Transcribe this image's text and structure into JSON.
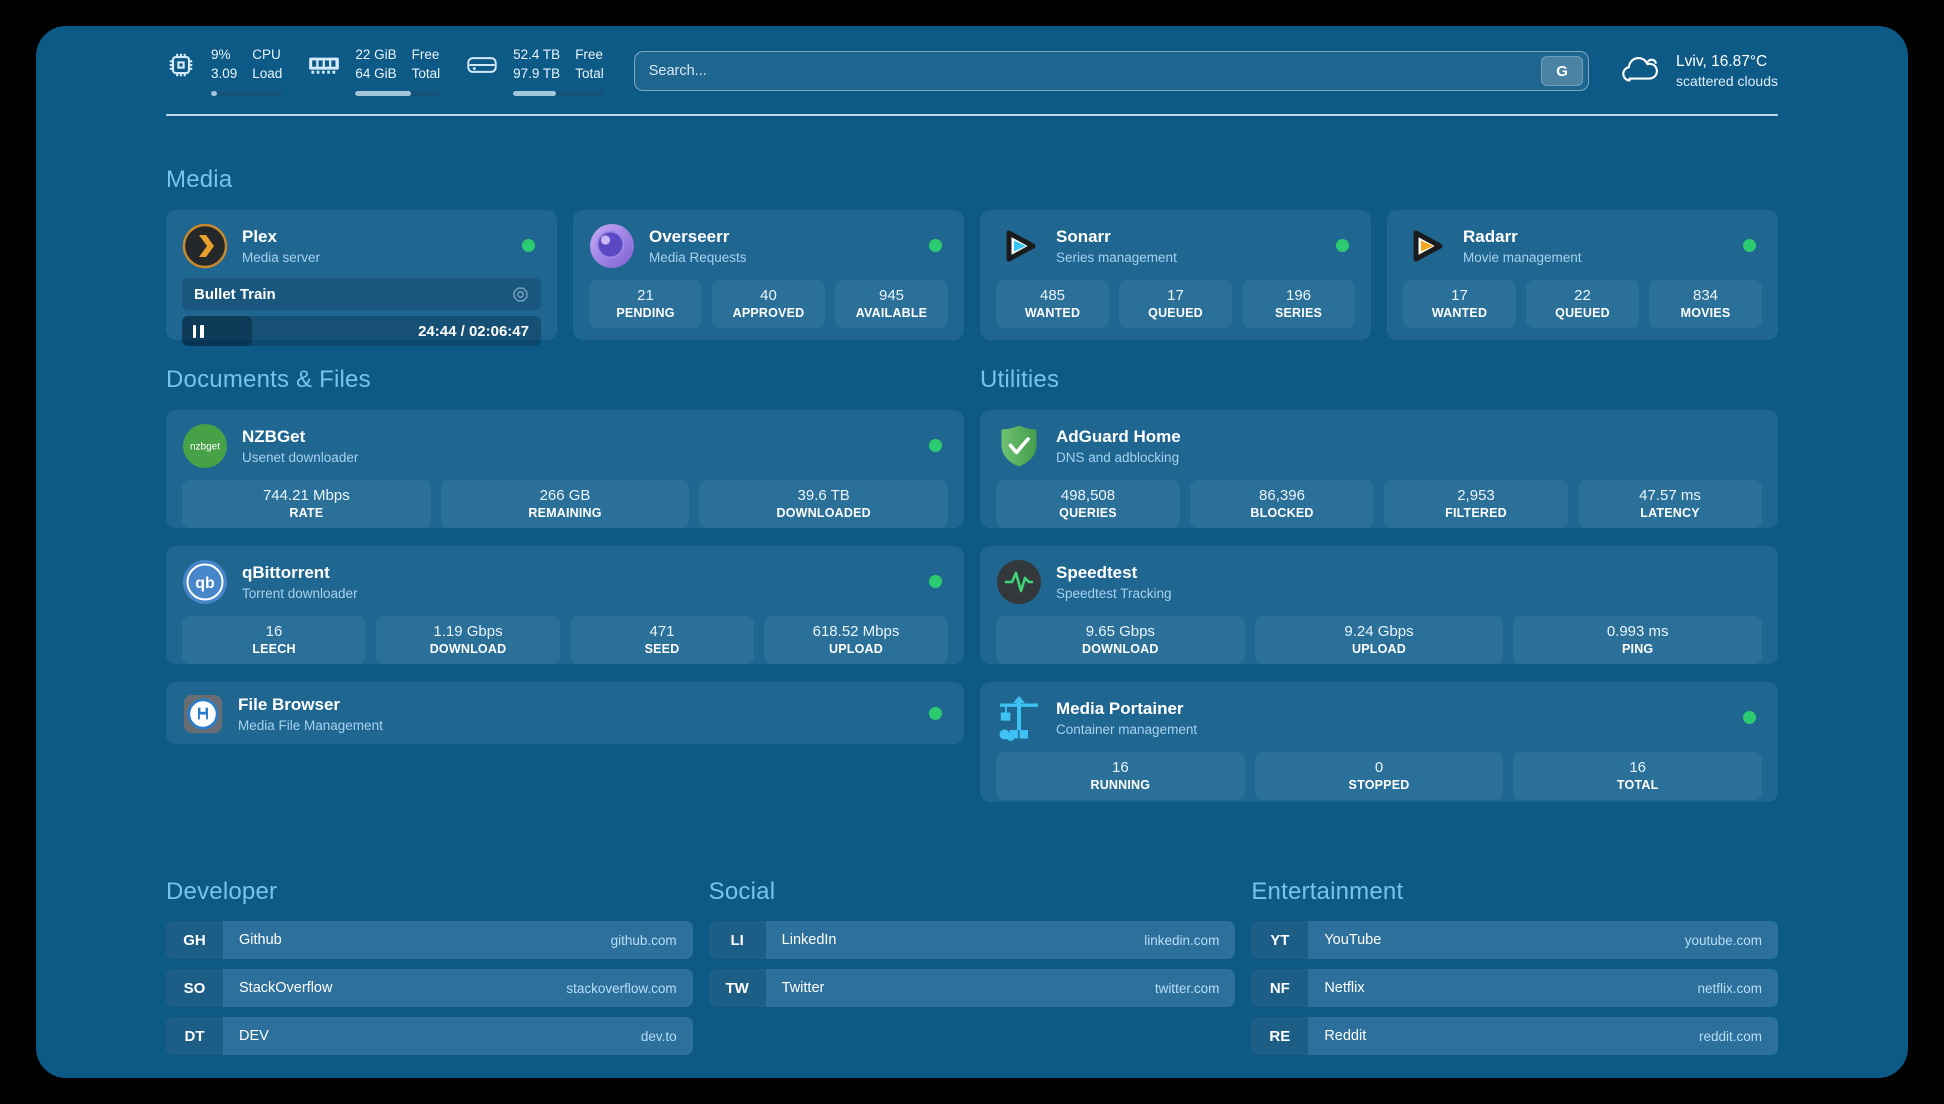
{
  "topbar": {
    "cpu": {
      "line1": "9%",
      "line2": "3.09",
      "label1": "CPU",
      "label2": "Load",
      "progress_pct": 9
    },
    "memory": {
      "line1": "22 GiB",
      "line2": "64 GiB",
      "label1": "Free",
      "label2": "Total",
      "progress_pct": 66
    },
    "disk": {
      "line1": "52.4 TB",
      "line2": "97.9 TB",
      "label1": "Free",
      "label2": "Total",
      "progress_pct": 47
    },
    "search": {
      "placeholder": "Search...",
      "provider_label": "G"
    },
    "weather": {
      "title": "Lviv, 16.87°C",
      "subtitle": "scattered clouds"
    }
  },
  "sections": {
    "media": "Media",
    "documents": "Documents & Files",
    "utilities": "Utilities"
  },
  "apps": {
    "plex": {
      "name": "Plex",
      "subtitle": "Media server",
      "now_playing": "Bullet Train",
      "time": "24:44 / 02:06:47",
      "progress_pct": 19.5
    },
    "overseerr": {
      "name": "Overseerr",
      "subtitle": "Media Requests",
      "stats": [
        {
          "value": "21",
          "label": "PENDING"
        },
        {
          "value": "40",
          "label": "APPROVED"
        },
        {
          "value": "945",
          "label": "AVAILABLE"
        }
      ]
    },
    "sonarr": {
      "name": "Sonarr",
      "subtitle": "Series management",
      "stats": [
        {
          "value": "485",
          "label": "WANTED"
        },
        {
          "value": "17",
          "label": "QUEUED"
        },
        {
          "value": "196",
          "label": "SERIES"
        }
      ]
    },
    "radarr": {
      "name": "Radarr",
      "subtitle": "Movie management",
      "stats": [
        {
          "value": "17",
          "label": "WANTED"
        },
        {
          "value": "22",
          "label": "QUEUED"
        },
        {
          "value": "834",
          "label": "MOVIES"
        }
      ]
    },
    "nzbget": {
      "name": "NZBGet",
      "subtitle": "Usenet downloader",
      "icon_label": "nzbget",
      "stats": [
        {
          "value": "744.21 Mbps",
          "label": "RATE"
        },
        {
          "value": "266 GB",
          "label": "REMAINING"
        },
        {
          "value": "39.6 TB",
          "label": "DOWNLOADED"
        }
      ]
    },
    "qbittorrent": {
      "name": "qBittorrent",
      "subtitle": "Torrent downloader",
      "icon_label": "qb",
      "stats": [
        {
          "value": "16",
          "label": "LEECH"
        },
        {
          "value": "1.19 Gbps",
          "label": "DOWNLOAD"
        },
        {
          "value": "471",
          "label": "SEED"
        },
        {
          "value": "618.52 Mbps",
          "label": "UPLOAD"
        }
      ]
    },
    "filebrowser": {
      "name": "File Browser",
      "subtitle": "Media File Management"
    },
    "adguard": {
      "name": "AdGuard Home",
      "subtitle": "DNS and adblocking",
      "stats": [
        {
          "value": "498,508",
          "label": "QUERIES"
        },
        {
          "value": "86,396",
          "label": "BLOCKED"
        },
        {
          "value": "2,953",
          "label": "FILTERED"
        },
        {
          "value": "47.57 ms",
          "label": "LATENCY"
        }
      ]
    },
    "speedtest": {
      "name": "Speedtest",
      "subtitle": "Speedtest Tracking",
      "stats": [
        {
          "value": "9.65 Gbps",
          "label": "DOWNLOAD"
        },
        {
          "value": "9.24 Gbps",
          "label": "UPLOAD"
        },
        {
          "value": "0.993 ms",
          "label": "PING"
        }
      ]
    },
    "portainer": {
      "name": "Media Portainer",
      "subtitle": "Container management",
      "stats": [
        {
          "value": "16",
          "label": "RUNNING"
        },
        {
          "value": "0",
          "label": "STOPPED"
        },
        {
          "value": "16",
          "label": "TOTAL"
        }
      ]
    }
  },
  "links": {
    "developer": {
      "title": "Developer",
      "items": [
        {
          "tag": "GH",
          "name": "Github",
          "domain": "github.com"
        },
        {
          "tag": "SO",
          "name": "StackOverflow",
          "domain": "stackoverflow.com"
        },
        {
          "tag": "DT",
          "name": "DEV",
          "domain": "dev.to"
        }
      ]
    },
    "social": {
      "title": "Social",
      "items": [
        {
          "tag": "LI",
          "name": "LinkedIn",
          "domain": "linkedin.com"
        },
        {
          "tag": "TW",
          "name": "Twitter",
          "domain": "twitter.com"
        }
      ]
    },
    "entertainment": {
      "title": "Entertainment",
      "items": [
        {
          "tag": "YT",
          "name": "YouTube",
          "domain": "youtube.com"
        },
        {
          "tag": "NF",
          "name": "Netflix",
          "domain": "netflix.com"
        },
        {
          "tag": "RE",
          "name": "Reddit",
          "domain": "reddit.com"
        }
      ]
    }
  },
  "colors": {
    "page_background": "#0d5a87",
    "card": "#1f6691",
    "stat_box": "#2b7099",
    "section_title": "#74c5ee",
    "status_online": "#2ccb70"
  }
}
